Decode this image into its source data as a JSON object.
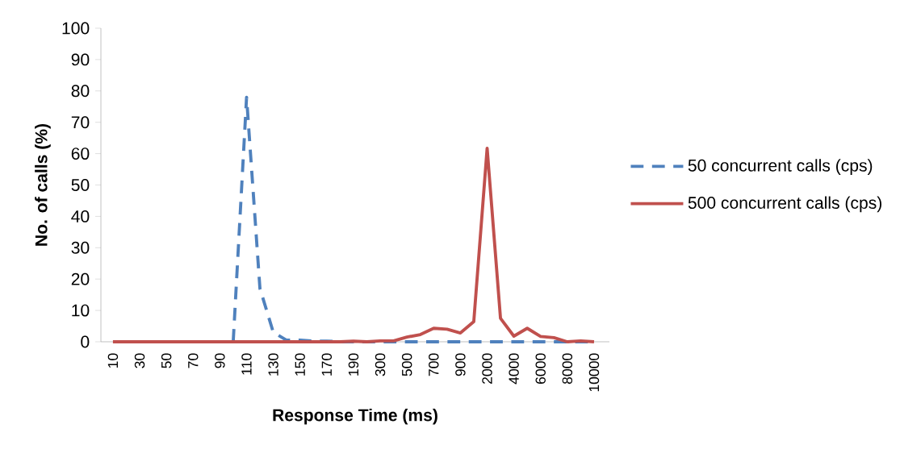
{
  "chart_data": {
    "type": "line",
    "xlabel": "Response Time (ms)",
    "ylabel": "No. of calls (%)",
    "categories": [
      "10",
      null,
      "30",
      null,
      "50",
      null,
      "70",
      null,
      "90",
      null,
      "110",
      null,
      "130",
      null,
      "150",
      null,
      "170",
      null,
      "190",
      null,
      "300",
      null,
      "500",
      null,
      "700",
      null,
      "900",
      null,
      "2000",
      null,
      "4000",
      null,
      "6000",
      null,
      "8000",
      null,
      "10000"
    ],
    "series": [
      {
        "name": "50 concurrent calls (cps)",
        "color": "#4f81bd",
        "line_style": "dashed",
        "values": [
          null,
          null,
          null,
          null,
          null,
          null,
          null,
          null,
          null,
          0,
          78,
          17,
          3,
          0.5,
          0.5,
          0.2,
          0.2,
          0,
          0,
          0,
          0,
          0,
          0,
          0,
          0,
          0,
          0,
          0,
          0,
          0,
          0,
          0,
          0,
          0,
          0,
          0,
          0
        ]
      },
      {
        "name": "500 concurrent calls (cps)",
        "color": "#c0504d",
        "line_style": "solid",
        "values": [
          0,
          0,
          0,
          0,
          0,
          0,
          0,
          0,
          0,
          0,
          0,
          0,
          0,
          0,
          0,
          0,
          0,
          0,
          0.2,
          0,
          0.3,
          0.3,
          1.5,
          2.3,
          4.3,
          4,
          2.8,
          6.4,
          61.7,
          7.5,
          1.8,
          4.3,
          1.7,
          1.3,
          0,
          0.3,
          0
        ]
      }
    ],
    "ylim": [
      0,
      100
    ],
    "yticks": [
      0,
      10,
      20,
      30,
      40,
      50,
      60,
      70,
      80,
      90,
      100
    ],
    "legend": "right",
    "grid": false
  }
}
